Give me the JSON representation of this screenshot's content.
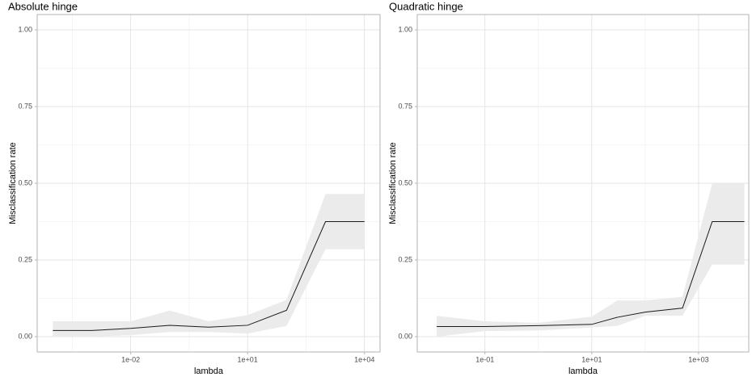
{
  "chart_data": [
    {
      "type": "line",
      "title": "Absolute hinge",
      "x_label": "lambda",
      "y_label": "Misclassification rate",
      "log_x": true,
      "grid": true,
      "color": "#1a1a1a",
      "band_color": "#ebebeb",
      "x": [
        0.0001,
        0.001,
        0.01,
        0.1,
        1,
        10,
        100,
        1000,
        10000
      ],
      "values": [
        0.02,
        0.02,
        0.027,
        0.037,
        0.031,
        0.037,
        0.086,
        0.375,
        0.375
      ],
      "band": {
        "lower": [
          0,
          0,
          0.005,
          0.015,
          0.015,
          0.01,
          0.035,
          0.285,
          0.285
        ],
        "upper": [
          0.05,
          0.05,
          0.05,
          0.085,
          0.05,
          0.07,
          0.12,
          0.465,
          0.465
        ]
      },
      "xlim": [
        3.98e-05,
        25119
      ],
      "ylim": [
        -0.05,
        1.05
      ],
      "xticks": [
        {
          "value": 0.01,
          "label": "1e-02"
        },
        {
          "value": 10,
          "label": "1e+01"
        },
        {
          "value": 10000,
          "label": "1e+04"
        }
      ],
      "minor_xticks": [
        0.000316,
        0.316,
        316
      ],
      "yticks": [
        {
          "value": 0,
          "label": "0.00"
        },
        {
          "value": 0.25,
          "label": "0.25"
        },
        {
          "value": 0.5,
          "label": "0.50"
        },
        {
          "value": 0.75,
          "label": "0.75"
        },
        {
          "value": 1,
          "label": "1.00"
        }
      ],
      "minor_yticks": [
        0.125,
        0.375,
        0.625,
        0.875
      ]
    },
    {
      "type": "line",
      "title": "Quadratic hinge",
      "x_label": "lambda",
      "y_label": "Misclassification rate",
      "log_x": true,
      "grid": true,
      "color": "#1a1a1a",
      "band_color": "#ebebeb",
      "x": [
        0.0125,
        0.1,
        1,
        10,
        30,
        100,
        500,
        1800,
        7200
      ],
      "values": [
        0.033,
        0.033,
        0.036,
        0.04,
        0.063,
        0.08,
        0.093,
        0.375,
        0.375
      ],
      "band": {
        "lower": [
          0,
          0.018,
          0.02,
          0.03,
          0.035,
          0.068,
          0.068,
          0.235,
          0.235
        ],
        "upper": [
          0.068,
          0.05,
          0.045,
          0.065,
          0.118,
          0.118,
          0.13,
          0.5,
          0.5
        ]
      },
      "xlim": [
        0.0054,
        8700
      ],
      "ylim": [
        -0.05,
        1.05
      ],
      "xticks": [
        {
          "value": 0.1,
          "label": "1e-01"
        },
        {
          "value": 10,
          "label": "1e+01"
        },
        {
          "value": 1000,
          "label": "1e+03"
        }
      ],
      "minor_xticks": [
        1,
        100
      ],
      "yticks": [
        {
          "value": 0,
          "label": "0.00"
        },
        {
          "value": 0.25,
          "label": "0.25"
        },
        {
          "value": 0.5,
          "label": "0.50"
        },
        {
          "value": 0.75,
          "label": "0.75"
        },
        {
          "value": 1,
          "label": "1.00"
        }
      ],
      "minor_yticks": [
        0.125,
        0.375,
        0.625,
        0.875
      ]
    }
  ]
}
